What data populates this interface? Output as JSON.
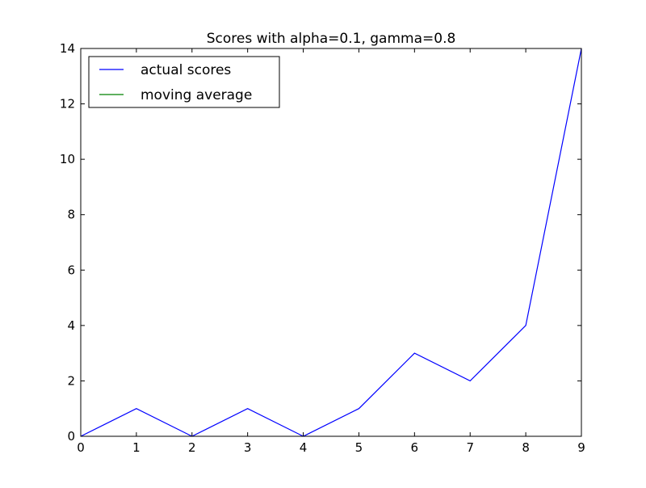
{
  "chart_data": {
    "type": "line",
    "title": "Scores with alpha=0.1, gamma=0.8",
    "xlabel": "",
    "ylabel": "",
    "xlim": [
      0,
      9
    ],
    "ylim": [
      0,
      14
    ],
    "xticks": [
      0,
      1,
      2,
      3,
      4,
      5,
      6,
      7,
      8,
      9
    ],
    "yticks": [
      0,
      2,
      4,
      6,
      8,
      10,
      12,
      14
    ],
    "grid": false,
    "legend_position": "top-left",
    "series": [
      {
        "name": "actual scores",
        "color": "#0000ff",
        "x": [
          0,
          1,
          2,
          3,
          4,
          5,
          6,
          7,
          8,
          9
        ],
        "y": [
          0,
          1,
          0,
          1,
          0,
          1,
          3,
          2,
          4,
          14
        ]
      },
      {
        "name": "moving average",
        "color": "#008000",
        "x": [],
        "y": []
      }
    ]
  }
}
